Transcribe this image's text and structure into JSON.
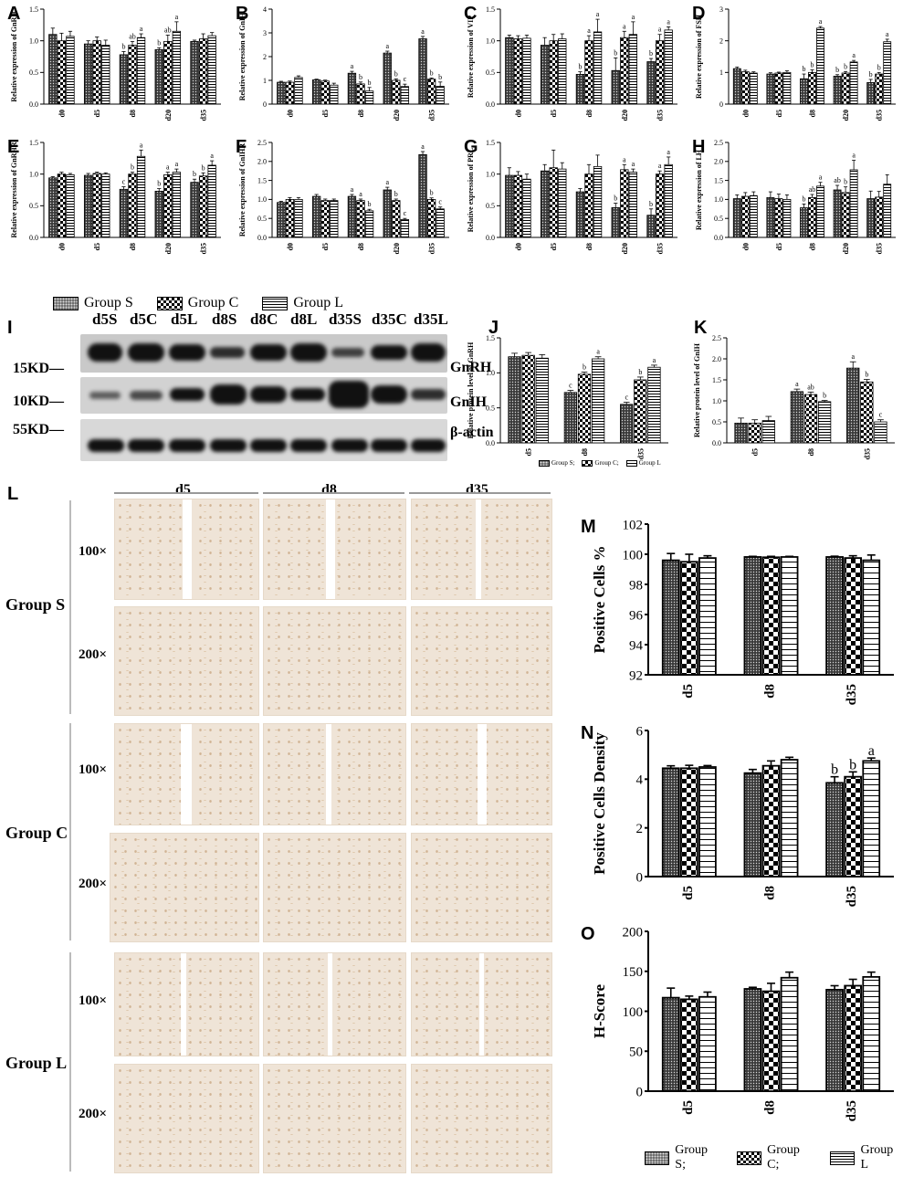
{
  "panel_labels": [
    "A",
    "B",
    "C",
    "D",
    "E",
    "F",
    "G",
    "H",
    "I",
    "J",
    "K",
    "L",
    "M",
    "N",
    "O"
  ],
  "legend_top": {
    "items": [
      "Group S",
      "Group C",
      "Group L"
    ]
  },
  "legend_bottom": {
    "items": [
      "Group S;",
      "Group C;",
      "Group L"
    ]
  },
  "blot": {
    "lanes": [
      "d5S",
      "d5C",
      "d5L",
      "d8S",
      "d8C",
      "d8L",
      "d35S",
      "d35C",
      "d35L"
    ],
    "kd": [
      "15KD",
      "10KD",
      "55KD"
    ],
    "proteins": [
      "GnRH",
      "GnIH",
      "β-actin"
    ]
  },
  "ihc": {
    "days": [
      "d5",
      "d8",
      "d35"
    ],
    "groups": [
      "Group S",
      "Group C",
      "Group L"
    ],
    "magnifications": [
      "100×",
      "200×"
    ]
  },
  "colors": {
    "group_s_fill": "#555555",
    "group_c": "checkerboard",
    "group_l": "horizontal-stripes"
  },
  "chart_data": [
    {
      "id": "A",
      "type": "bar",
      "ylabel": "Relative expression of GnRH",
      "categories": [
        "d0",
        "d5",
        "d8",
        "d20",
        "d35"
      ],
      "ylim": [
        0,
        1.5
      ],
      "yticks": [
        "0.0",
        "0.5",
        "1.0",
        "1.5"
      ],
      "series": [
        {
          "name": "Group S",
          "values": [
            1.1,
            0.95,
            0.78,
            0.86,
            0.99
          ],
          "err": [
            0.1,
            0.05,
            0.05,
            0.03,
            0.02
          ],
          "labels": [
            "",
            "",
            "b",
            "b",
            ""
          ]
        },
        {
          "name": "Group C",
          "values": [
            1.0,
            1.0,
            0.93,
            0.99,
            1.03
          ],
          "err": [
            0.12,
            0.06,
            0.06,
            0.1,
            0.08
          ],
          "labels": [
            "",
            "",
            "ab",
            "ab",
            ""
          ]
        },
        {
          "name": "Group L",
          "values": [
            1.07,
            0.93,
            1.05,
            1.15,
            1.08
          ],
          "err": [
            0.08,
            0.08,
            0.06,
            0.15,
            0.05
          ],
          "labels": [
            "",
            "",
            "a",
            "a",
            ""
          ]
        }
      ]
    },
    {
      "id": "B",
      "type": "bar",
      "ylabel": "Relative expression of GnIH",
      "categories": [
        "d0",
        "d5",
        "d8",
        "d20",
        "d35"
      ],
      "ylim": [
        0,
        4
      ],
      "yticks": [
        "0",
        "1",
        "2",
        "3",
        "4"
      ],
      "series": [
        {
          "name": "Group S",
          "values": [
            0.92,
            1.02,
            1.3,
            2.15,
            2.75
          ],
          "err": [
            0.04,
            0.03,
            0.08,
            0.08,
            0.1
          ],
          "labels": [
            "",
            "",
            "a",
            "a",
            "a"
          ]
        },
        {
          "name": "Group C",
          "values": [
            0.92,
            0.97,
            0.85,
            1.0,
            1.05
          ],
          "err": [
            0.05,
            0.04,
            0.08,
            0.06,
            0.05
          ],
          "labels": [
            "",
            "",
            "b",
            "b",
            "b"
          ]
        },
        {
          "name": "Group L",
          "values": [
            1.12,
            0.8,
            0.55,
            0.74,
            0.75
          ],
          "err": [
            0.07,
            0.08,
            0.15,
            0.1,
            0.18
          ],
          "labels": [
            "",
            "",
            "b",
            "c",
            "b"
          ]
        }
      ]
    },
    {
      "id": "C",
      "type": "bar",
      "ylabel": "Relative expression of VIP",
      "categories": [
        "d0",
        "d5",
        "d8",
        "d20",
        "d35"
      ],
      "ylim": [
        0,
        1.5
      ],
      "yticks": [
        "0.0",
        "0.5",
        "1.0",
        "1.5"
      ],
      "series": [
        {
          "name": "Group S",
          "values": [
            1.05,
            0.93,
            0.47,
            0.53,
            0.67
          ],
          "err": [
            0.04,
            0.12,
            0.04,
            0.2,
            0.05
          ],
          "labels": [
            "",
            "",
            "b",
            "b",
            "b"
          ]
        },
        {
          "name": "Group C",
          "values": [
            1.03,
            1.0,
            1.0,
            1.05,
            1.0
          ],
          "err": [
            0.05,
            0.1,
            0.08,
            0.1,
            0.1
          ],
          "labels": [
            "",
            "",
            "a",
            "a",
            "a"
          ]
        },
        {
          "name": "Group L",
          "values": [
            1.04,
            1.03,
            1.14,
            1.1,
            1.17
          ],
          "err": [
            0.05,
            0.08,
            0.2,
            0.2,
            0.05
          ],
          "labels": [
            "",
            "",
            "a",
            "a",
            "a"
          ]
        }
      ]
    },
    {
      "id": "D",
      "type": "bar",
      "ylabel": "Relative expression of FSH",
      "categories": [
        "d0",
        "d5",
        "d8",
        "d20",
        "d35"
      ],
      "ylim": [
        0,
        3
      ],
      "yticks": [
        "0",
        "1",
        "2",
        "3"
      ],
      "series": [
        {
          "name": "Group S",
          "values": [
            1.12,
            0.95,
            0.8,
            0.88,
            0.68
          ],
          "err": [
            0.05,
            0.04,
            0.15,
            0.05,
            0.1
          ],
          "labels": [
            "",
            "",
            "b",
            "b",
            "b"
          ]
        },
        {
          "name": "Group C",
          "values": [
            1.02,
            0.98,
            1.0,
            0.98,
            0.95
          ],
          "err": [
            0.05,
            0.03,
            0.08,
            0.05,
            0.05
          ],
          "labels": [
            "",
            "",
            "b",
            "b",
            "b"
          ]
        },
        {
          "name": "Group L",
          "values": [
            0.98,
            1.0,
            2.4,
            1.33,
            1.97
          ],
          "err": [
            0.04,
            0.05,
            0.05,
            0.05,
            0.08
          ],
          "labels": [
            "",
            "",
            "a",
            "a",
            "a"
          ]
        }
      ]
    },
    {
      "id": "E",
      "type": "bar",
      "ylabel": "Relative expression of GnRHR",
      "categories": [
        "d0",
        "d5",
        "d8",
        "d20",
        "d35"
      ],
      "ylim": [
        0,
        1.5
      ],
      "yticks": [
        "0.0",
        "0.5",
        "1.0",
        "1.5"
      ],
      "series": [
        {
          "name": "Group S",
          "values": [
            0.94,
            0.98,
            0.76,
            0.73,
            0.87
          ],
          "err": [
            0.02,
            0.03,
            0.04,
            0.04,
            0.05
          ],
          "labels": [
            "",
            "",
            "c",
            "b",
            "b"
          ]
        },
        {
          "name": "Group C",
          "values": [
            1.0,
            1.01,
            1.0,
            0.99,
            0.97
          ],
          "err": [
            0.03,
            0.02,
            0.03,
            0.04,
            0.05
          ],
          "labels": [
            "",
            "",
            "b",
            "a",
            "b"
          ]
        },
        {
          "name": "Group L",
          "values": [
            0.99,
            1.0,
            1.28,
            1.03,
            1.14
          ],
          "err": [
            0.02,
            0.02,
            0.1,
            0.05,
            0.07
          ],
          "labels": [
            "",
            "",
            "a",
            "a",
            "a"
          ]
        }
      ]
    },
    {
      "id": "F",
      "type": "bar",
      "ylabel": "Relative expression of GnIHR",
      "categories": [
        "d0",
        "d5",
        "d8",
        "d20",
        "d35"
      ],
      "ylim": [
        0,
        2.5
      ],
      "yticks": [
        "0.0",
        "0.5",
        "1.0",
        "1.5",
        "2.0",
        "2.5"
      ],
      "series": [
        {
          "name": "Group S",
          "values": [
            0.92,
            1.08,
            1.08,
            1.25,
            2.18
          ],
          "err": [
            0.03,
            0.05,
            0.05,
            0.07,
            0.08
          ],
          "labels": [
            "",
            "",
            "a",
            "a",
            "a"
          ]
        },
        {
          "name": "Group C",
          "values": [
            1.0,
            0.97,
            0.97,
            0.97,
            1.0
          ],
          "err": [
            0.05,
            0.04,
            0.04,
            0.04,
            0.04
          ],
          "labels": [
            "",
            "",
            "a",
            "b",
            "b"
          ]
        },
        {
          "name": "Group L",
          "values": [
            1.0,
            0.97,
            0.7,
            0.47,
            0.75
          ],
          "err": [
            0.05,
            0.04,
            0.04,
            0.03,
            0.05
          ],
          "labels": [
            "",
            "",
            "b",
            "c",
            "c"
          ]
        }
      ]
    },
    {
      "id": "G",
      "type": "bar",
      "ylabel": "Relative expression of PRL",
      "categories": [
        "d0",
        "d5",
        "d8",
        "d20",
        "d35"
      ],
      "ylim": [
        0,
        1.5
      ],
      "yticks": [
        "0.0",
        "0.5",
        "1.0",
        "1.5"
      ],
      "series": [
        {
          "name": "Group S",
          "values": [
            0.98,
            1.05,
            0.72,
            0.47,
            0.35
          ],
          "err": [
            0.12,
            0.1,
            0.05,
            0.07,
            0.1
          ],
          "labels": [
            "",
            "",
            "",
            "b",
            "b"
          ]
        },
        {
          "name": "Group C",
          "values": [
            0.98,
            1.1,
            1.0,
            1.07,
            1.0
          ],
          "err": [
            0.06,
            0.28,
            0.15,
            0.08,
            0.05
          ],
          "labels": [
            "",
            "",
            "",
            "a",
            "a"
          ]
        },
        {
          "name": "Group L",
          "values": [
            0.92,
            1.08,
            1.12,
            1.03,
            1.15
          ],
          "err": [
            0.08,
            0.1,
            0.18,
            0.05,
            0.12
          ],
          "labels": [
            "",
            "",
            "",
            "a",
            "a"
          ]
        }
      ]
    },
    {
      "id": "H",
      "type": "bar",
      "ylabel": "Relative expression of LH",
      "categories": [
        "d0",
        "d5",
        "d8",
        "d20",
        "d35"
      ],
      "ylim": [
        0,
        2.5
      ],
      "yticks": [
        "0.0",
        "0.5",
        "1.0",
        "1.5",
        "2.0",
        "2.5"
      ],
      "series": [
        {
          "name": "Group S",
          "values": [
            1.02,
            1.05,
            0.78,
            1.25,
            1.02
          ],
          "err": [
            0.1,
            0.15,
            0.1,
            0.12,
            0.2
          ],
          "labels": [
            "",
            "",
            "b",
            "ab",
            ""
          ]
        },
        {
          "name": "Group C",
          "values": [
            1.08,
            1.02,
            1.05,
            1.18,
            1.06
          ],
          "err": [
            0.1,
            0.12,
            0.08,
            0.15,
            0.15
          ],
          "labels": [
            "",
            "",
            "ab",
            "b",
            ""
          ]
        },
        {
          "name": "Group L",
          "values": [
            1.1,
            1.0,
            1.35,
            1.78,
            1.4
          ],
          "err": [
            0.1,
            0.12,
            0.1,
            0.25,
            0.25
          ],
          "labels": [
            "",
            "",
            "a",
            "a",
            ""
          ]
        }
      ]
    },
    {
      "id": "J",
      "type": "bar",
      "ylabel": "Relative protein level of GnRH",
      "categories": [
        "d5",
        "d8",
        "d35"
      ],
      "ylim": [
        0,
        1.5
      ],
      "yticks": [
        "0.0",
        "0.5",
        "1.0",
        "1.5"
      ],
      "series": [
        {
          "name": "Group S",
          "values": [
            1.23,
            0.72,
            0.55
          ],
          "err": [
            0.05,
            0.03,
            0.03
          ],
          "labels": [
            "",
            "c",
            "c"
          ]
        },
        {
          "name": "Group C",
          "values": [
            1.25,
            0.98,
            0.9
          ],
          "err": [
            0.04,
            0.03,
            0.04
          ],
          "labels": [
            "",
            "b",
            "b"
          ]
        },
        {
          "name": "Group L",
          "values": [
            1.21,
            1.2,
            1.08
          ],
          "err": [
            0.05,
            0.03,
            0.03
          ],
          "labels": [
            "",
            "a",
            "a"
          ]
        }
      ]
    },
    {
      "id": "K",
      "type": "bar",
      "ylabel": "Relative protein level of GnIH",
      "categories": [
        "d5",
        "d8",
        "d35"
      ],
      "ylim": [
        0,
        2.5
      ],
      "yticks": [
        "0.0",
        "0.5",
        "1.0",
        "1.5",
        "2.0",
        "2.5"
      ],
      "series": [
        {
          "name": "Group S",
          "values": [
            0.47,
            1.22,
            1.78
          ],
          "err": [
            0.12,
            0.06,
            0.15
          ],
          "labels": [
            "",
            "a",
            "a"
          ]
        },
        {
          "name": "Group C",
          "values": [
            0.47,
            1.15,
            1.45
          ],
          "err": [
            0.08,
            0.06,
            0.06
          ],
          "labels": [
            "",
            "ab",
            "b"
          ]
        },
        {
          "name": "Group L",
          "values": [
            0.53,
            0.98,
            0.5
          ],
          "err": [
            0.1,
            0.03,
            0.05
          ],
          "labels": [
            "",
            "b",
            "c"
          ]
        }
      ]
    },
    {
      "id": "M",
      "type": "bar",
      "ylabel": "Positive Cells %",
      "categories": [
        "d5",
        "d8",
        "d35"
      ],
      "ylim": [
        92,
        102
      ],
      "yticks": [
        "92",
        "94",
        "96",
        "98",
        "100",
        "102"
      ],
      "series": [
        {
          "name": "Group S",
          "values": [
            99.6,
            99.82,
            99.82
          ],
          "err": [
            0.45,
            0.04,
            0.05
          ],
          "labels": [
            "",
            "",
            ""
          ]
        },
        {
          "name": "Group C",
          "values": [
            99.5,
            99.8,
            99.75
          ],
          "err": [
            0.5,
            0.06,
            0.15
          ],
          "labels": [
            "",
            "",
            ""
          ]
        },
        {
          "name": "Group L",
          "values": [
            99.75,
            99.82,
            99.6
          ],
          "err": [
            0.15,
            0.04,
            0.35
          ],
          "labels": [
            "",
            "",
            ""
          ]
        }
      ]
    },
    {
      "id": "N",
      "type": "bar",
      "ylabel": "Positive Cells Density",
      "categories": [
        "d5",
        "d8",
        "d35"
      ],
      "ylim": [
        0,
        6
      ],
      "yticks": [
        "0",
        "2",
        "4",
        "6"
      ],
      "series": [
        {
          "name": "Group S",
          "values": [
            4.45,
            4.25,
            3.85
          ],
          "err": [
            0.1,
            0.15,
            0.25
          ],
          "labels": [
            "",
            "",
            "b"
          ]
        },
        {
          "name": "Group C",
          "values": [
            4.45,
            4.55,
            4.1
          ],
          "err": [
            0.12,
            0.2,
            0.2
          ],
          "labels": [
            "",
            "",
            "b"
          ]
        },
        {
          "name": "Group L",
          "values": [
            4.5,
            4.8,
            4.75
          ],
          "err": [
            0.06,
            0.1,
            0.12
          ],
          "labels": [
            "",
            "",
            "a"
          ]
        }
      ]
    },
    {
      "id": "O",
      "type": "bar",
      "ylabel": "H-Score",
      "categories": [
        "d5",
        "d8",
        "d35"
      ],
      "ylim": [
        0,
        200
      ],
      "yticks": [
        "0",
        "50",
        "100",
        "150",
        "200"
      ],
      "series": [
        {
          "name": "Group S",
          "values": [
            117,
            128,
            127
          ],
          "err": [
            12,
            2,
            5
          ],
          "labels": [
            "",
            "",
            ""
          ]
        },
        {
          "name": "Group C",
          "values": [
            115,
            125,
            132
          ],
          "err": [
            4,
            10,
            8
          ],
          "labels": [
            "",
            "",
            ""
          ]
        },
        {
          "name": "Group L",
          "values": [
            118,
            142,
            143
          ],
          "err": [
            6,
            7,
            6
          ],
          "labels": [
            "",
            "",
            ""
          ]
        }
      ]
    }
  ]
}
